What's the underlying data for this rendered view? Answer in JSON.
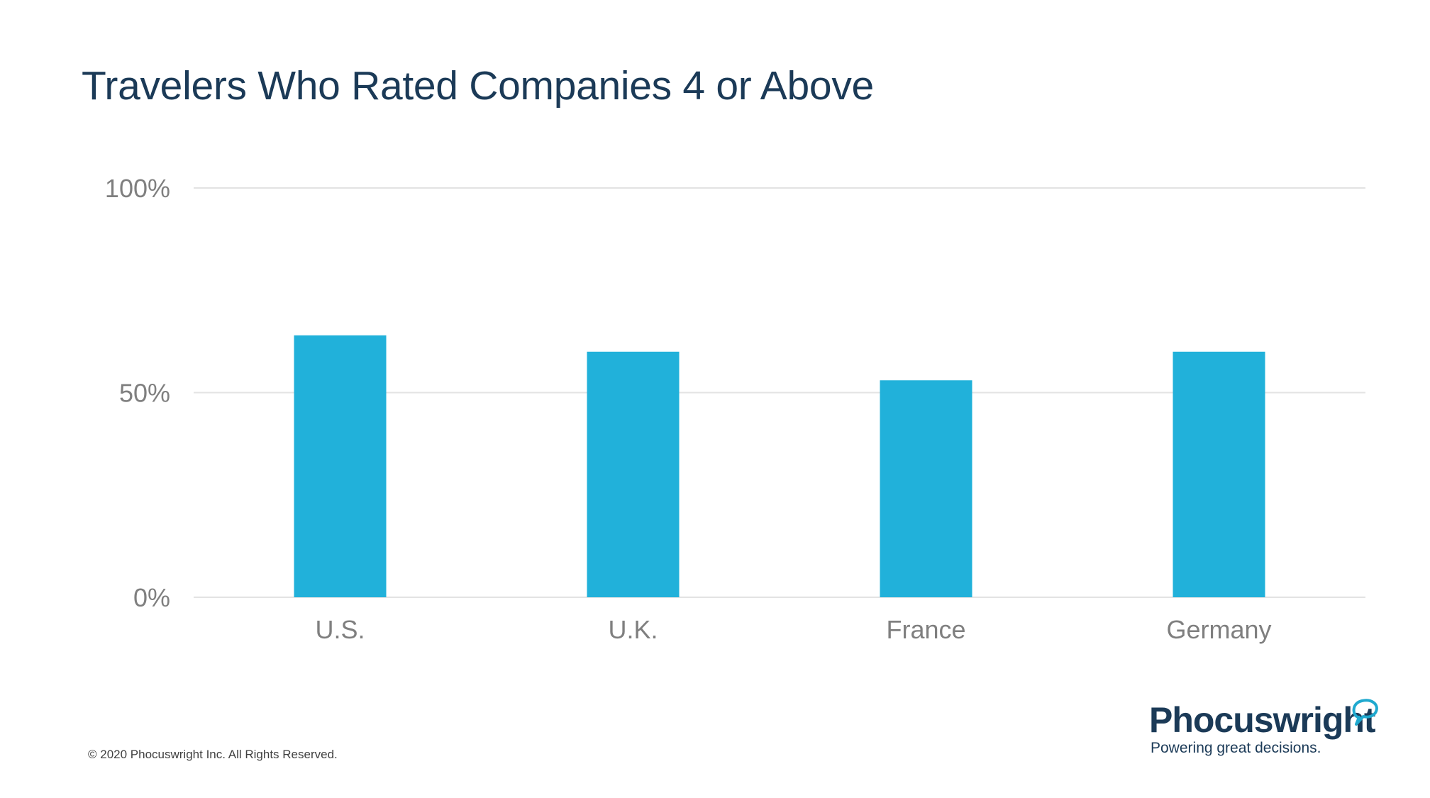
{
  "title": "Travelers Who Rated Companies 4 or Above",
  "footer": "© 2020  Phocuswright Inc. All Rights Reserved.",
  "logo": {
    "name": "Phocuswright",
    "tagline": "Powering great decisions.",
    "icon": "speech-bubble-icon",
    "colors": {
      "text": "#1b3a57",
      "mark": "#1fa9cf"
    }
  },
  "chart_data": {
    "type": "bar",
    "categories": [
      "U.S.",
      "U.K.",
      "France",
      "Germany"
    ],
    "values": [
      64,
      60,
      53,
      60
    ],
    "yticks": [
      "0%",
      "50%",
      "100%"
    ],
    "ytick_values": [
      0,
      50,
      100
    ],
    "ylim": [
      0,
      100
    ],
    "grid": true,
    "legend": "none",
    "bar_color": "#21b1da",
    "grid_color": "#e3e3e3",
    "label_color": "#7f7f7f"
  }
}
